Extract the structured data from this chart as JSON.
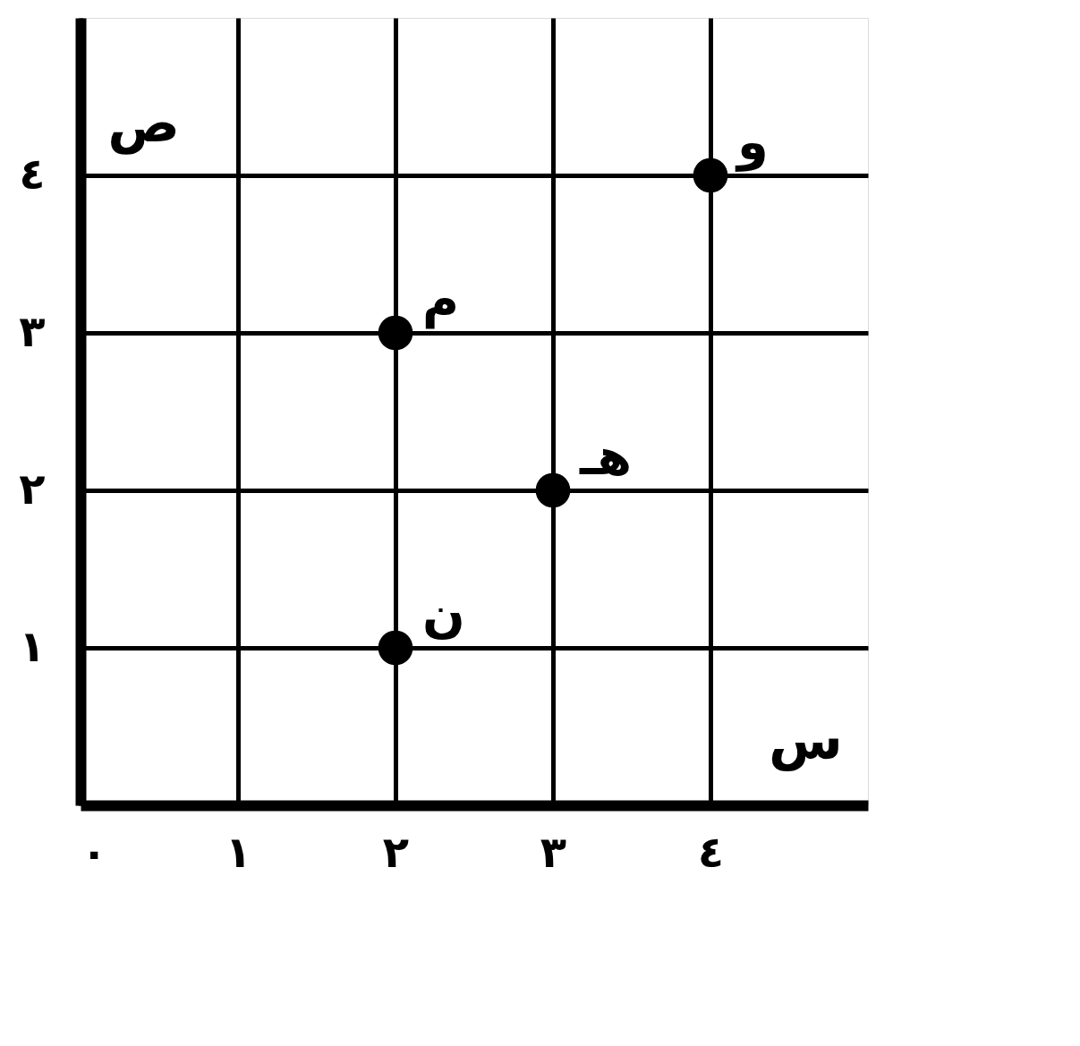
{
  "chart_data": {
    "type": "scatter",
    "xlabel": "س",
    "ylabel": "ص",
    "x": [
      2,
      2,
      3,
      4
    ],
    "values": [
      1,
      3,
      2,
      4
    ],
    "color": "#000000",
    "marker": "circle",
    "xlim": [
      0,
      5
    ],
    "ylim": [
      0,
      5
    ],
    "xticks": [
      {
        "value": 0,
        "label": "٠"
      },
      {
        "value": 1,
        "label": "١"
      },
      {
        "value": 2,
        "label": "٢"
      },
      {
        "value": 3,
        "label": "٣"
      },
      {
        "value": 4,
        "label": "٤"
      }
    ],
    "yticks": [
      {
        "value": 1,
        "label": "١"
      },
      {
        "value": 2,
        "label": "٢"
      },
      {
        "value": 3,
        "label": "٣"
      },
      {
        "value": 4,
        "label": "٤"
      }
    ],
    "grid": true,
    "annotations": [
      {
        "text": "ن",
        "x": 2,
        "y": 1
      },
      {
        "text": "م",
        "x": 2,
        "y": 3
      },
      {
        "text": "هـ",
        "x": 3,
        "y": 2
      },
      {
        "text": "و",
        "x": 4,
        "y": 4
      }
    ]
  }
}
